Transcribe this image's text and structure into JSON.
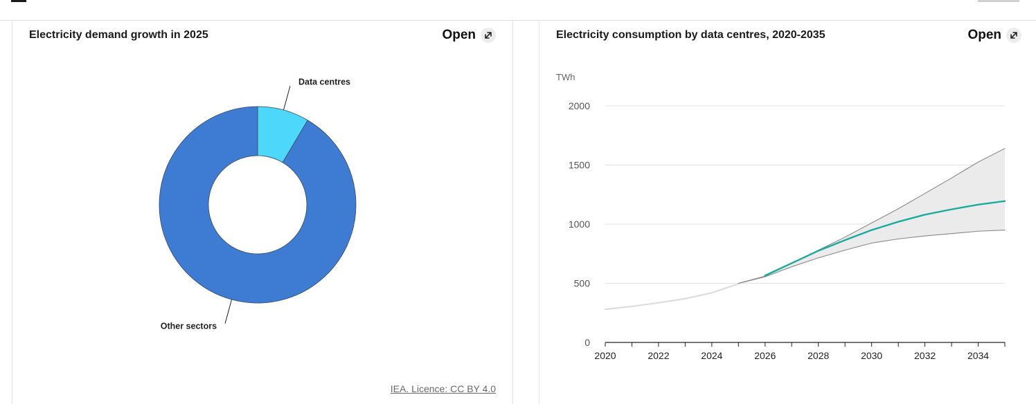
{
  "charts": [
    {
      "title": "Electricity demand growth in 2025",
      "open_label": "Open",
      "licence": "IEA. Licence: CC BY 4.0"
    },
    {
      "title": "Electricity consumption by data centres, 2020-2035",
      "open_label": "Open"
    }
  ],
  "chart_data": [
    {
      "type": "pie",
      "variant": "donut",
      "title": "Electricity demand growth in 2025",
      "slices": [
        {
          "label": "Data centres",
          "value": 8.5,
          "color": "#4dd7fa"
        },
        {
          "label": "Other sectors",
          "value": 91.5,
          "color": "#3e7bd3"
        }
      ]
    },
    {
      "type": "line",
      "title": "Electricity consumption by data centres, 2020-2035",
      "ylabel": "TWh",
      "ylim": [
        0,
        2000
      ],
      "yticks": [
        0,
        500,
        1000,
        1500,
        2000
      ],
      "xlim": [
        2020,
        2035
      ],
      "xticks": [
        2020,
        2022,
        2024,
        2026,
        2028,
        2030,
        2032,
        2034
      ],
      "grid": true,
      "series": [
        {
          "role": "historical",
          "color": "#dddddd",
          "x": [
            2020,
            2021,
            2022,
            2023,
            2024,
            2025,
            2026
          ],
          "values": [
            280,
            305,
            335,
            370,
            420,
            495,
            560
          ]
        },
        {
          "role": "central",
          "color": "#1aab9e",
          "x": [
            2026,
            2027,
            2028,
            2029,
            2030,
            2031,
            2032,
            2033,
            2034,
            2035
          ],
          "values": [
            565,
            670,
            775,
            865,
            950,
            1020,
            1080,
            1125,
            1165,
            1195
          ]
        },
        {
          "role": "range-upper",
          "color": "#888888",
          "x": [
            2025,
            2026,
            2027,
            2028,
            2029,
            2030,
            2031,
            2032,
            2033,
            2034,
            2035
          ],
          "values": [
            500,
            560,
            670,
            780,
            890,
            1010,
            1130,
            1260,
            1390,
            1525,
            1640
          ]
        },
        {
          "role": "range-lower",
          "color": "#888888",
          "x": [
            2025,
            2026,
            2027,
            2028,
            2029,
            2030,
            2031,
            2032,
            2033,
            2034,
            2035
          ],
          "values": [
            500,
            555,
            640,
            715,
            780,
            840,
            875,
            900,
            920,
            940,
            950
          ]
        }
      ],
      "band_fill": "#ebebeb"
    }
  ]
}
